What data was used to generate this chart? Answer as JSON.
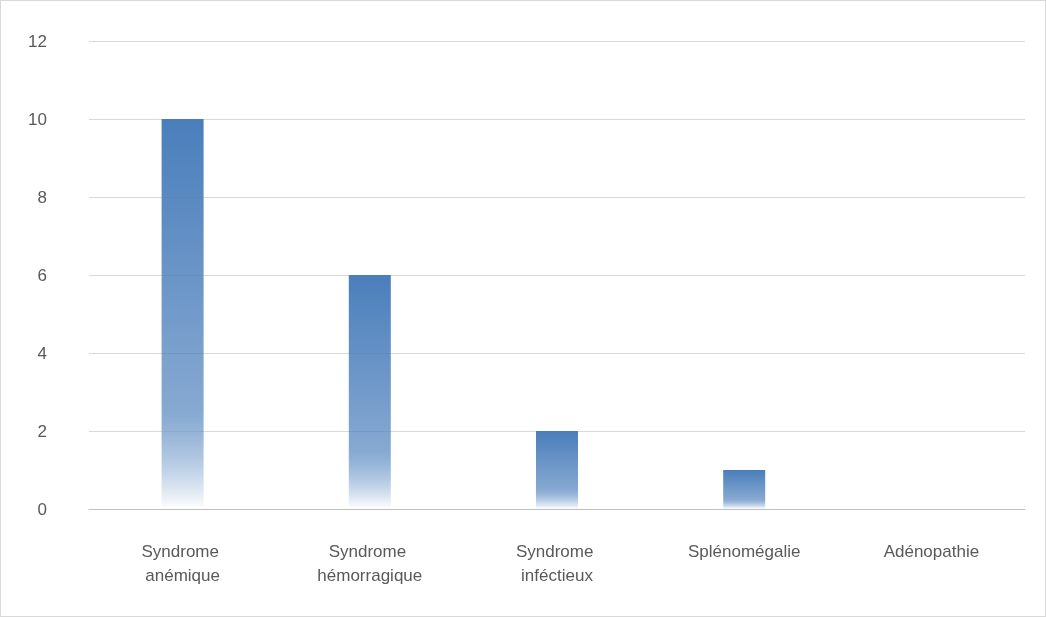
{
  "chart_data": {
    "type": "bar",
    "categories": [
      "Syndrome anémique",
      "Syndrome hémorragique",
      "Syndrome inféctieux",
      "Splénomégalie",
      "Adénopathie"
    ],
    "values": [
      10,
      6,
      2,
      1,
      0
    ],
    "color": "#4a7ebb",
    "ylim": [
      0,
      12
    ],
    "yticks": [
      0,
      2,
      4,
      6,
      8,
      10,
      12
    ],
    "grid": "y"
  }
}
